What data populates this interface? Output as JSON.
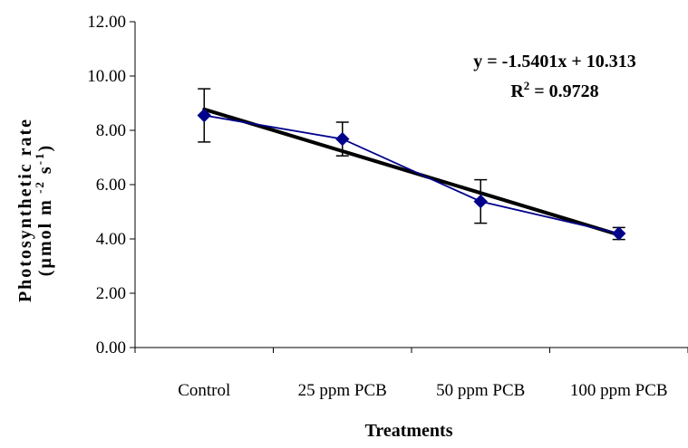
{
  "chart_data": {
    "type": "line",
    "categories": [
      "Control",
      "25 ppm PCB",
      "50 ppm PCB",
      "100 ppm PCB"
    ],
    "series": [
      {
        "values": [
          8.55,
          7.68,
          5.38,
          4.2
        ],
        "error": [
          0.98,
          0.62,
          0.8,
          0.22
        ],
        "color": "#00008B",
        "marker": "diamond"
      }
    ],
    "trendline": {
      "type": "linear",
      "slope": -1.5401,
      "intercept": 10.313,
      "color": "#000000",
      "equation": "y = -1.5401x + 10.313",
      "r2_prefix": "R",
      "r2_sup": "2",
      "r2_value": " = 0.9728"
    },
    "ylim": [
      0,
      12
    ],
    "yticks": [
      "0.00",
      "2.00",
      "4.00",
      "6.00",
      "8.00",
      "10.00",
      "12.00"
    ],
    "ylabel_line1": "Photosynthetic rate",
    "ylabel_line2_parts": [
      "(µmol m",
      " -2",
      " s",
      "-1",
      ")"
    ],
    "xlabel": "Treatments",
    "grid": false
  }
}
